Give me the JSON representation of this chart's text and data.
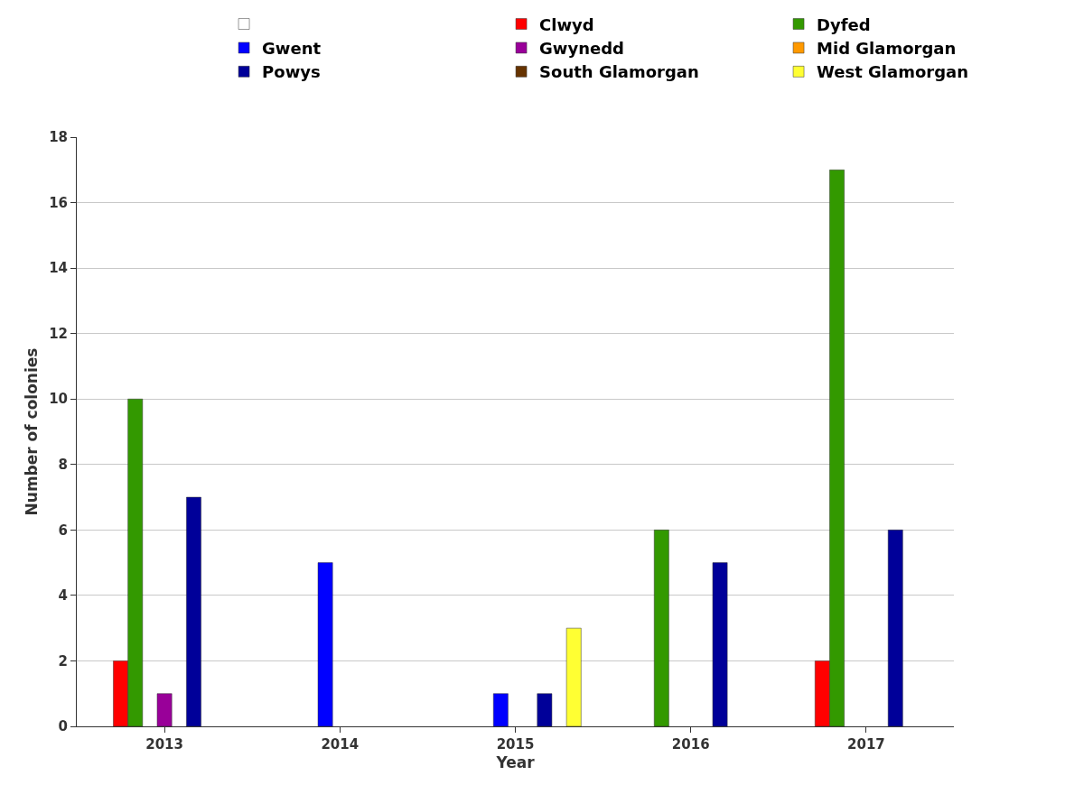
{
  "chart_data": {
    "type": "bar",
    "xlabel": "Year",
    "ylabel": "Number of colonies",
    "categories": [
      "2013",
      "2014",
      "2015",
      "2016",
      "2017"
    ],
    "series": [
      {
        "color": "#ffffff",
        "values": [
          null,
          null,
          null,
          null,
          null
        ]
      },
      {
        "name": "Clwyd",
        "color": "#ff0000",
        "values": [
          2,
          null,
          null,
          null,
          2
        ]
      },
      {
        "name": "Dyfed",
        "color": "#339900",
        "values": [
          10,
          null,
          null,
          6,
          17
        ]
      },
      {
        "name": "Gwent",
        "color": "#0000ff",
        "values": [
          null,
          5,
          1,
          null,
          null
        ]
      },
      {
        "name": "Gwynedd",
        "color": "#990099",
        "values": [
          1,
          null,
          null,
          null,
          null
        ]
      },
      {
        "name": "Mid Glamorgan",
        "color": "#ff9900",
        "values": [
          null,
          null,
          null,
          null,
          null
        ]
      },
      {
        "name": "Powys",
        "color": "#000099",
        "values": [
          7,
          null,
          1,
          5,
          6
        ]
      },
      {
        "name": "South Glamorgan",
        "color": "#663300",
        "values": [
          null,
          null,
          null,
          null,
          null
        ]
      },
      {
        "name": "West Glamorgan",
        "color": "#ffff33",
        "values": [
          null,
          null,
          3,
          null,
          null
        ]
      }
    ],
    "ylim": [
      0,
      18
    ],
    "yticks": [
      0,
      2,
      4,
      6,
      8,
      10,
      12,
      14,
      16,
      18
    ],
    "grid": "y",
    "legend": "top"
  }
}
